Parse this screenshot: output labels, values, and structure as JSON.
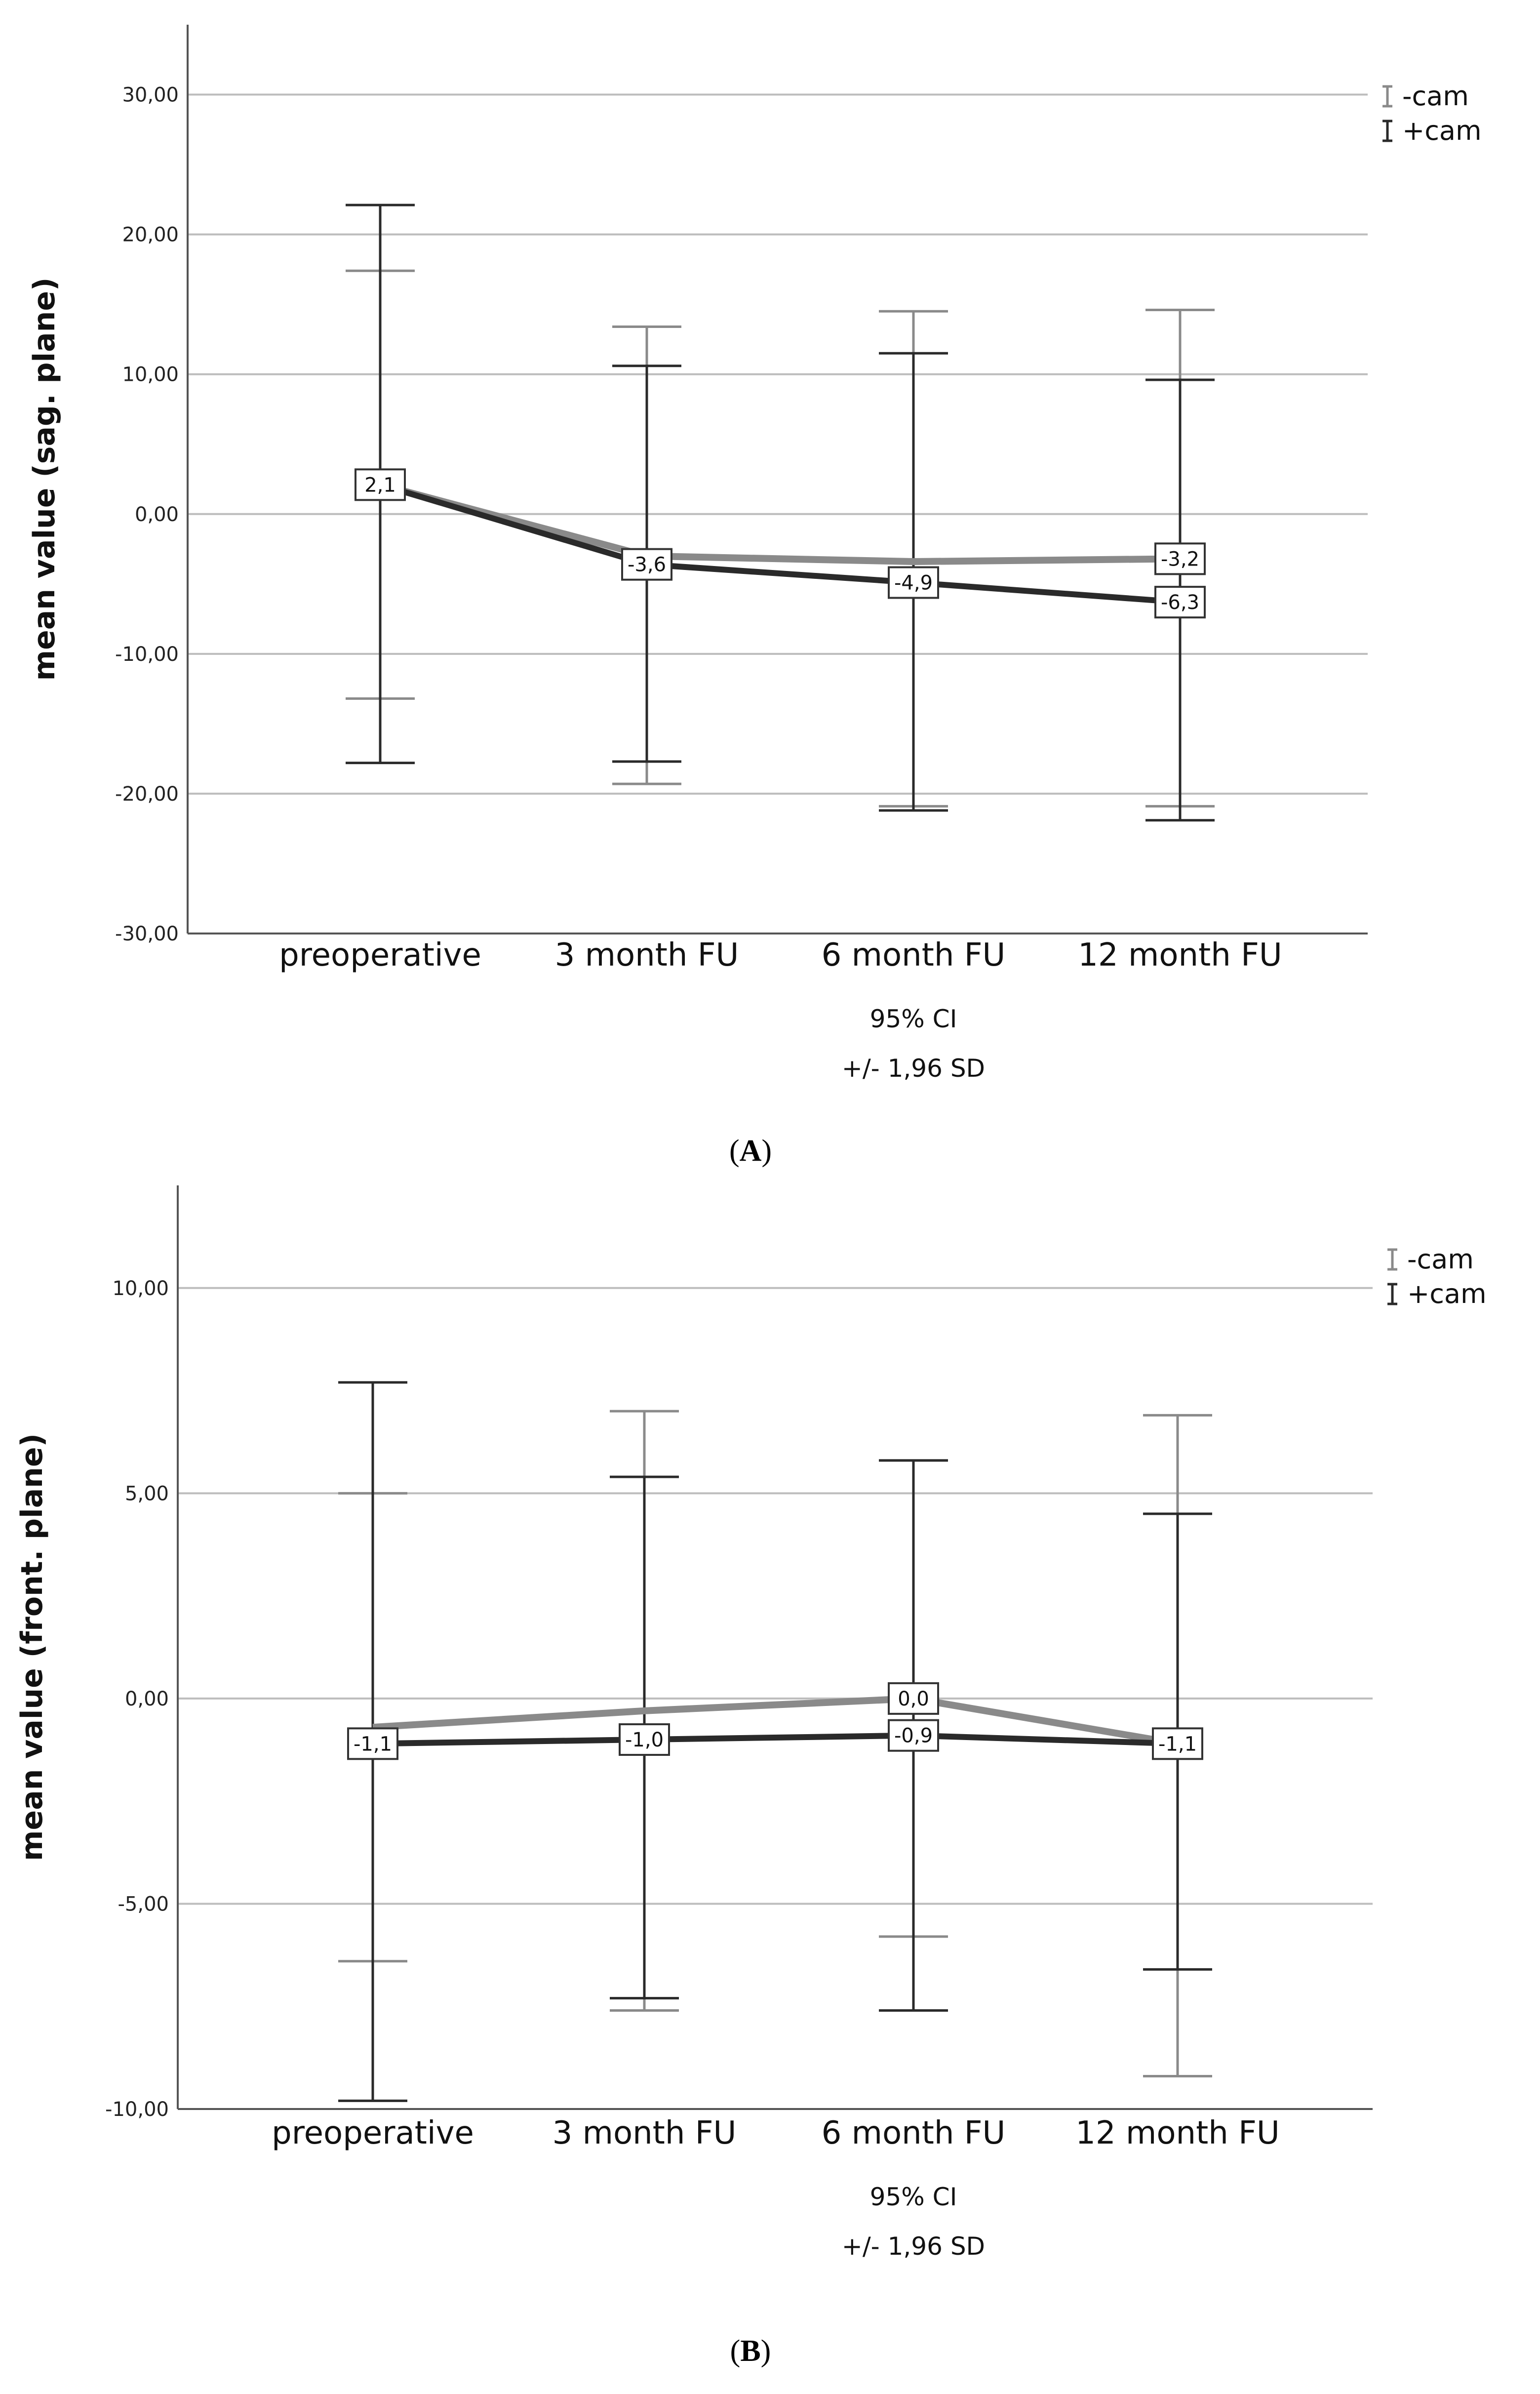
{
  "chart_data": [
    {
      "type": "line",
      "panel_label": "A",
      "ylabel": "mean value (sag. plane)",
      "xlabel_lines": [
        "95% CI",
        "+/- 1,96 SD"
      ],
      "categories": [
        "preoperative",
        "3 month FU",
        "6 month FU",
        "12 month FU"
      ],
      "ylim": [
        -30,
        35
      ],
      "yticks": [
        -30,
        -20,
        -10,
        0,
        10,
        20,
        30
      ],
      "ytick_labels": [
        "-30,00",
        "-20,00",
        "-10,00",
        "0,00",
        "10,00",
        "20,00",
        "30,00"
      ],
      "grid": true,
      "legend_position": "top-right",
      "series": [
        {
          "name": "-cam",
          "color": "#8a8a8a",
          "values": [
            2.1,
            -3.0,
            -3.4,
            -3.2
          ],
          "err_low": [
            -13.2,
            -19.3,
            -20.9,
            -20.9
          ],
          "err_high": [
            17.4,
            13.4,
            14.5,
            14.6
          ],
          "labels": [
            "",
            "",
            "",
            "-3,2"
          ]
        },
        {
          "name": "+cam",
          "color": "#2a2a2a",
          "values": [
            2.1,
            -3.6,
            -4.9,
            -6.3
          ],
          "err_low": [
            -17.8,
            -17.7,
            -21.2,
            -21.9
          ],
          "err_high": [
            22.1,
            10.6,
            11.5,
            9.6
          ],
          "labels": [
            "2,1",
            "-3,6",
            "-4,9",
            "-6,3"
          ]
        }
      ]
    },
    {
      "type": "line",
      "panel_label": "B",
      "ylabel": "mean value (front. plane)",
      "xlabel_lines": [
        "95% CI",
        "+/- 1,96 SD"
      ],
      "categories": [
        "preoperative",
        "3 month FU",
        "6 month FU",
        "12 month FU"
      ],
      "ylim": [
        -10,
        12.5
      ],
      "yticks": [
        -10,
        -5,
        0,
        5,
        10
      ],
      "ytick_labels": [
        "-10,00",
        "-5,00",
        "0,00",
        "5,00",
        "10,00"
      ],
      "grid": true,
      "legend_position": "top-right",
      "series": [
        {
          "name": "-cam",
          "color": "#8a8a8a",
          "values": [
            -0.7,
            -0.3,
            0.0,
            -1.1
          ],
          "err_low": [
            -6.4,
            -7.6,
            -5.8,
            -9.2
          ],
          "err_high": [
            5.0,
            7.0,
            5.8,
            6.9
          ],
          "labels": [
            "",
            "",
            "0,0",
            ""
          ]
        },
        {
          "name": "+cam",
          "color": "#2a2a2a",
          "values": [
            -1.1,
            -1.0,
            -0.9,
            -1.1
          ],
          "err_low": [
            -9.8,
            -7.3,
            -7.6,
            -6.6
          ],
          "err_high": [
            7.7,
            5.4,
            5.8,
            4.5
          ],
          "labels": [
            "-1,1",
            "-1,0",
            "-0,9",
            "-1,1"
          ]
        }
      ]
    }
  ]
}
